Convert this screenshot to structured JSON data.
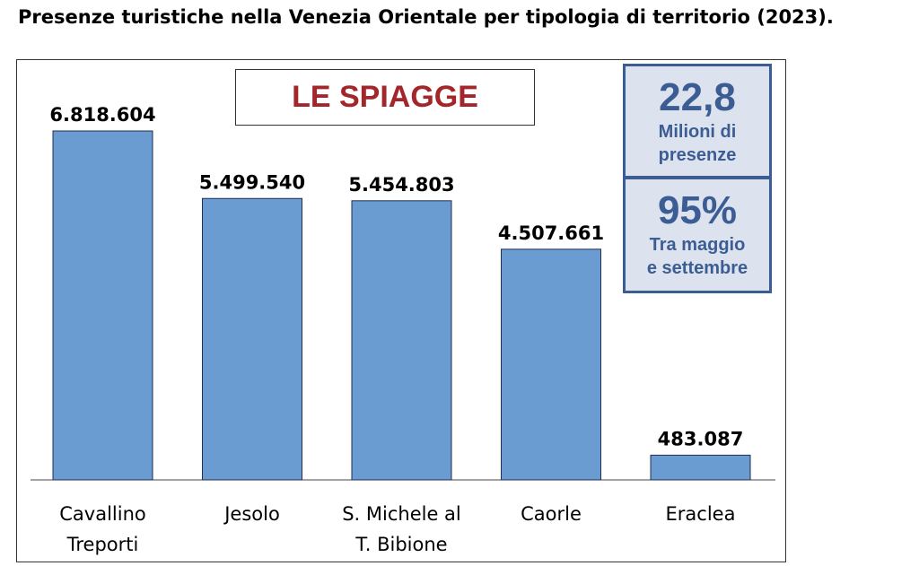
{
  "title": "Presenze turistiche nella Venezia Orientale per tipologia di territorio (2023).",
  "banner": "LE SPIAGGE",
  "stats": [
    {
      "value": "22,8",
      "line1": "Milioni di",
      "line2": "presenze"
    },
    {
      "value": "95%",
      "line1": "Tra maggio",
      "line2": "e settembre"
    }
  ],
  "colors": {
    "bar": "#6a9bd1",
    "stat_text": "#3c5d93",
    "stat_bg": "#dce3ee",
    "banner_text": "#a3262a"
  },
  "chart_data": {
    "type": "bar",
    "title": "",
    "xlabel": "",
    "ylabel": "",
    "ylim": [
      0,
      7000000
    ],
    "grid": false,
    "categories": [
      [
        "Cavallino",
        "Treporti"
      ],
      [
        "Jesolo"
      ],
      [
        "S. Michele al",
        "T. Bibione"
      ],
      [
        "Caorle"
      ],
      [
        "Eraclea"
      ]
    ],
    "values": [
      6818604,
      5499540,
      5454803,
      4507661,
      483087
    ],
    "value_labels": [
      "6.818.604",
      "5.499.540",
      "5.454.803",
      "4.507.661",
      "483.087"
    ]
  }
}
